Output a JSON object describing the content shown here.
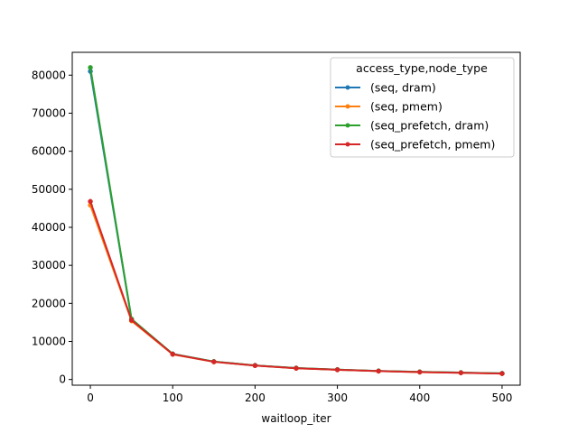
{
  "chart_data": {
    "type": "line",
    "title": "",
    "xlabel": "waitloop_iter",
    "ylabel": "",
    "xlim": [
      -22,
      522
    ],
    "ylim": [
      -1500,
      86000
    ],
    "x_ticks": [
      0,
      100,
      200,
      300,
      400,
      500
    ],
    "y_ticks": [
      0,
      10000,
      20000,
      30000,
      40000,
      50000,
      60000,
      70000,
      80000
    ],
    "grid": false,
    "legend": {
      "title": "access_type,node_type",
      "placement": "top-right"
    },
    "x": [
      0,
      50,
      100,
      150,
      200,
      250,
      300,
      350,
      400,
      450,
      500
    ],
    "series": [
      {
        "name": "(seq, dram)",
        "color": "#1f77b4",
        "values": [
          81000,
          15800,
          6700,
          4700,
          3700,
          3000,
          2600,
          2250,
          2000,
          1800,
          1600
        ]
      },
      {
        "name": "(seq, pmem)",
        "color": "#ff7f0e",
        "values": [
          45800,
          15400,
          6600,
          4650,
          3650,
          2950,
          2550,
          2200,
          1950,
          1750,
          1550
        ]
      },
      {
        "name": "(seq_prefetch, dram)",
        "color": "#2ca02c",
        "values": [
          82000,
          15900,
          6700,
          4700,
          3700,
          3000,
          2600,
          2250,
          2000,
          1800,
          1600
        ]
      },
      {
        "name": "(seq_prefetch, pmem)",
        "color": "#d62728",
        "values": [
          46800,
          15600,
          6650,
          4650,
          3650,
          2950,
          2550,
          2200,
          1950,
          1750,
          1550
        ]
      }
    ]
  }
}
